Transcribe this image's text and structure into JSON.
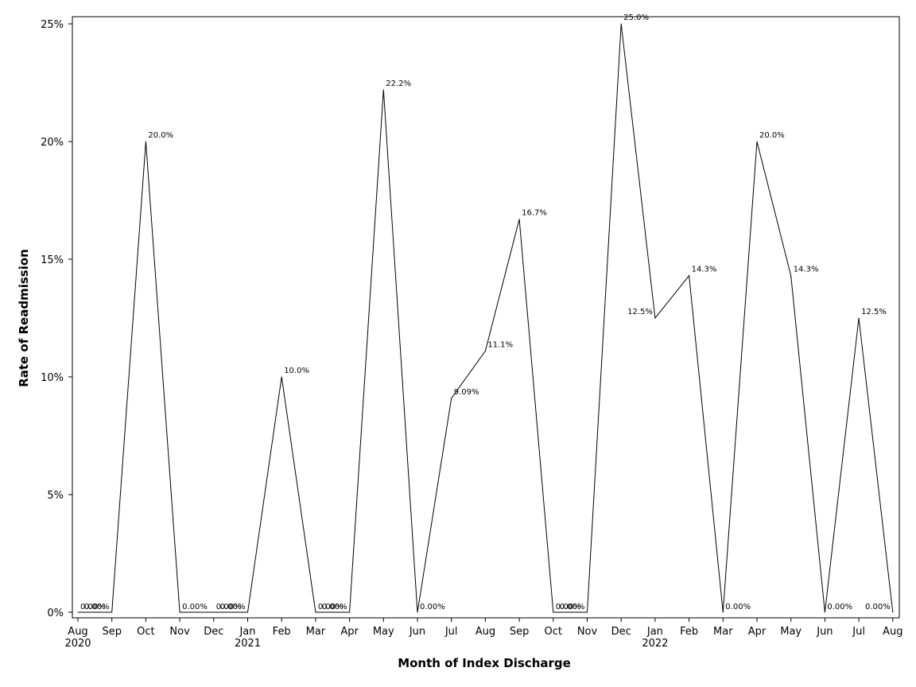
{
  "chart_data": {
    "type": "line",
    "xlabel": "Month of Index Discharge",
    "ylabel": "Rate of Readmission",
    "ylim": [
      0,
      25
    ],
    "yticks": [
      "0%",
      "5%",
      "10%",
      "15%",
      "20%",
      "25%"
    ],
    "ytick_values": [
      0,
      5,
      10,
      15,
      20,
      25
    ],
    "grid": false,
    "months": [
      "Aug",
      "Sep",
      "Oct",
      "Nov",
      "Dec",
      "Jan",
      "Feb",
      "Mar",
      "Apr",
      "May",
      "Jun",
      "Jul",
      "Aug",
      "Sep",
      "Oct",
      "Nov",
      "Dec",
      "Jan",
      "Feb",
      "Mar",
      "Apr",
      "May",
      "Jun",
      "Jul",
      "Aug"
    ],
    "year_labels": [
      {
        "index": 0,
        "label": "2020"
      },
      {
        "index": 5,
        "label": "2021"
      },
      {
        "index": 17,
        "label": "2022"
      }
    ],
    "series": [
      {
        "values": [
          0,
          0,
          20,
          0,
          0,
          0,
          10,
          0,
          0,
          22.2,
          0,
          9.09,
          11.1,
          16.7,
          0,
          0,
          25,
          12.5,
          14.3,
          0,
          20,
          14.3,
          0,
          12.5,
          0
        ],
        "labels": [
          "0.00%",
          "0.00%",
          "20.0%",
          "0.00%",
          "0.00%",
          "0.00%",
          "10.0%",
          "0.00%",
          "0.00%",
          "22.2%",
          "0.00%",
          "9.09%",
          "11.1%",
          "16.7%",
          "0.00%",
          "0.00%",
          "25.0%",
          "12.5%",
          "14.3%",
          "0.00%",
          "20.0%",
          "14.3%",
          "0.00%",
          "12.5%",
          "0.00%"
        ],
        "color": "#000000"
      }
    ]
  }
}
